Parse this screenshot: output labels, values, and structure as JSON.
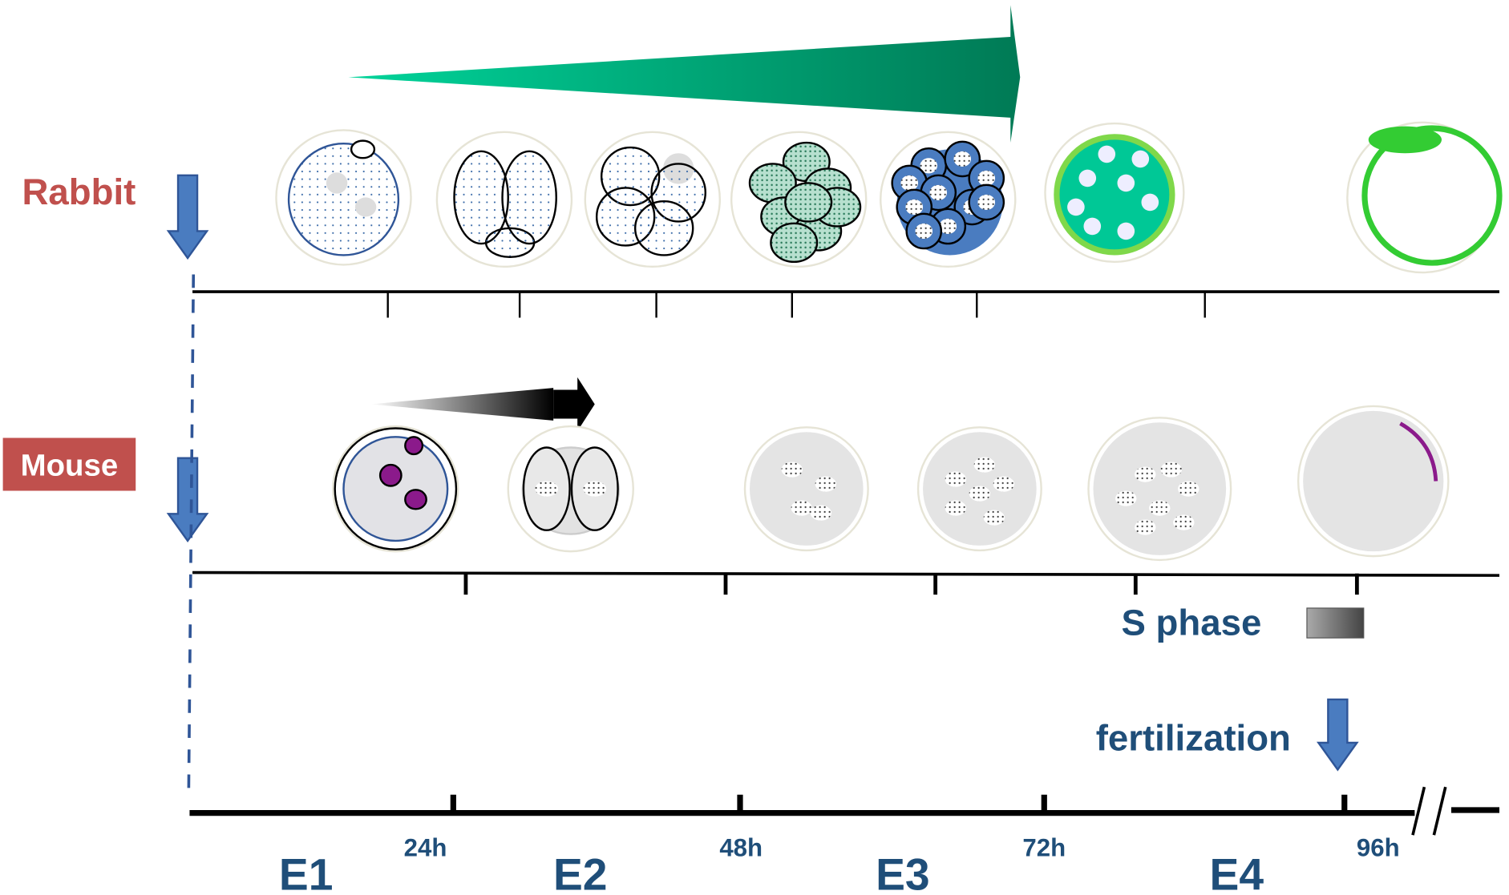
{
  "species": [
    {
      "label": "Rabbit"
    },
    {
      "label": "Mouse"
    }
  ],
  "legend": {
    "s_phase": "S phase",
    "fertilization": "fertilization"
  },
  "time_axis": {
    "hours": [
      "24h",
      "48h",
      "72h",
      "96h"
    ],
    "stages": [
      "E1",
      "E2",
      "E3",
      "E4"
    ]
  }
}
